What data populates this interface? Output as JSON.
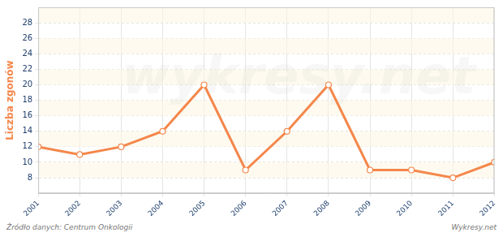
{
  "chart_data": {
    "type": "line",
    "y_label": "Liczba zgonów",
    "categories": [
      "2001",
      "2002",
      "2003",
      "2004",
      "2005",
      "2006",
      "2007",
      "2008",
      "2009",
      "2010",
      "2011",
      "2012"
    ],
    "values": [
      12,
      11,
      12,
      14,
      20,
      9,
      14,
      20,
      9,
      9,
      8,
      10
    ],
    "color": "#f4874b",
    "marker": "circle",
    "ylim": [
      6,
      30
    ],
    "yticks": [
      8,
      10,
      12,
      14,
      16,
      18,
      20,
      22,
      24,
      26,
      28
    ],
    "grid": true,
    "source": "Źródło danych: Centrum Onkologii",
    "credit": "Wykresy.net",
    "watermark": "wykresy.net"
  }
}
